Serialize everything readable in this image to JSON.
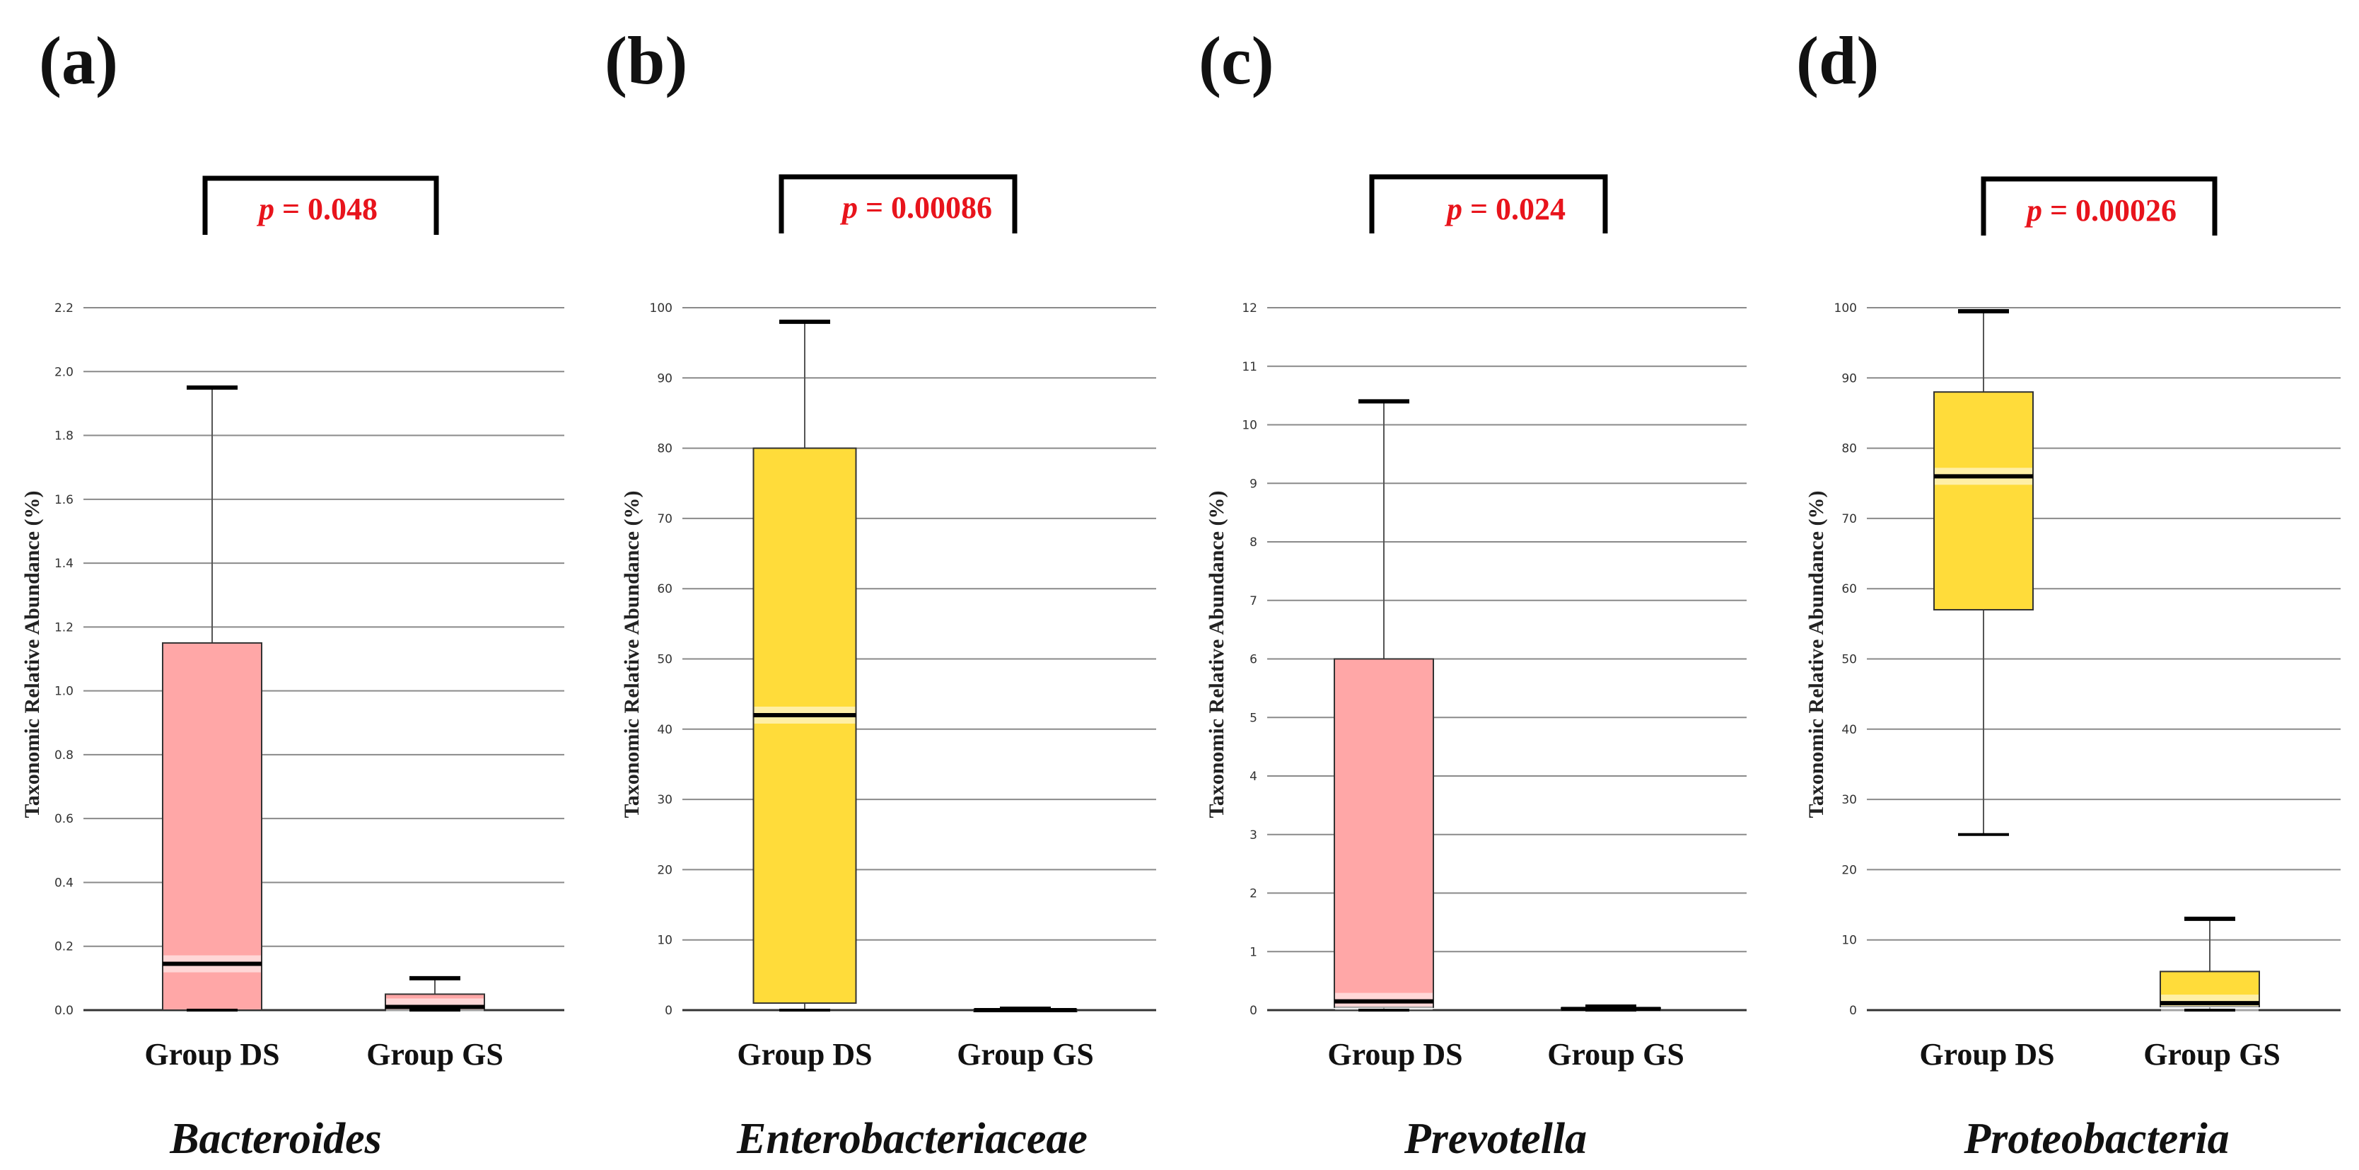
{
  "chart_data": [
    {
      "type": "box",
      "panel_label": "(a)",
      "taxon": "Bacteroides",
      "ylabel": "Taxonomic Relative Abundance (%)",
      "ylim": [
        0,
        2.2
      ],
      "yticks": [
        "0.0",
        "0.2",
        "0.4",
        "0.6",
        "0.8",
        "1.0",
        "1.2",
        "1.4",
        "1.6",
        "1.8",
        "2.0",
        "2.2"
      ],
      "categories": [
        "Group DS",
        "Group GS"
      ],
      "box_color": "#ffa7a7",
      "boxes": [
        {
          "group": "Group DS",
          "min": 0.0,
          "q1": 0.0,
          "median": 0.145,
          "q3": 1.15,
          "max": 1.95
        },
        {
          "group": "Group GS",
          "min": 0.0,
          "q1": 0.0,
          "median": 0.01,
          "q3": 0.05,
          "max": 0.1
        }
      ],
      "p_symbol": "p",
      "p_rest": " = 0.048"
    },
    {
      "type": "box",
      "panel_label": "(b)",
      "taxon": "Enterobacteriaceae",
      "ylabel": "Taxonomic Relative Abundance (%)",
      "ylim": [
        0,
        100
      ],
      "yticks": [
        "0",
        "10",
        "20",
        "30",
        "40",
        "50",
        "60",
        "70",
        "80",
        "90",
        "100"
      ],
      "categories": [
        "Group DS",
        "Group GS"
      ],
      "box_color": "#ffdc3a",
      "boxes": [
        {
          "group": "Group DS",
          "min": 0.0,
          "q1": 1.0,
          "median": 42.0,
          "q3": 80.0,
          "max": 98.0
        },
        {
          "group": "Group GS",
          "min": 0.0,
          "q1": 0.0,
          "median": 0.0,
          "q3": 0.1,
          "max": 0.2
        }
      ],
      "p_symbol": "p",
      "p_rest": " = 0.00086"
    },
    {
      "type": "box",
      "panel_label": "(c)",
      "taxon": "Prevotella",
      "ylabel": "Taxonomic Relative Abundance (%)",
      "ylim": [
        0,
        12
      ],
      "yticks": [
        "0",
        "1",
        "2",
        "3",
        "4",
        "5",
        "6",
        "7",
        "8",
        "9",
        "10",
        "11",
        "12"
      ],
      "categories": [
        "Group DS",
        "Group GS"
      ],
      "box_color": "#ffa7a7",
      "boxes": [
        {
          "group": "Group DS",
          "min": 0.0,
          "q1": 0.05,
          "median": 0.15,
          "q3": 6.0,
          "max": 10.4
        },
        {
          "group": "Group GS",
          "min": 0.0,
          "q1": 0.0,
          "median": 0.02,
          "q3": 0.04,
          "max": 0.06
        }
      ],
      "p_symbol": "p",
      "p_rest": " = 0.024"
    },
    {
      "type": "box",
      "panel_label": "(d)",
      "taxon": "Proteobacteria",
      "ylabel": "Taxonomic Relative Abundance (%)",
      "ylim": [
        0,
        100
      ],
      "yticks": [
        "0",
        "10",
        "20",
        "30",
        "40",
        "50",
        "60",
        "70",
        "80",
        "90",
        "100"
      ],
      "categories": [
        "Group DS",
        "Group GS"
      ],
      "box_color": "#ffdc3a",
      "boxes": [
        {
          "group": "Group DS",
          "min": 25.0,
          "q1": 57.0,
          "median": 76.0,
          "q3": 88.0,
          "max": 99.5
        },
        {
          "group": "Group GS",
          "min": 0.0,
          "q1": 0.5,
          "median": 1.0,
          "q3": 5.5,
          "max": 13.0
        }
      ],
      "p_symbol": "p",
      "p_rest": " = 0.00026"
    }
  ]
}
